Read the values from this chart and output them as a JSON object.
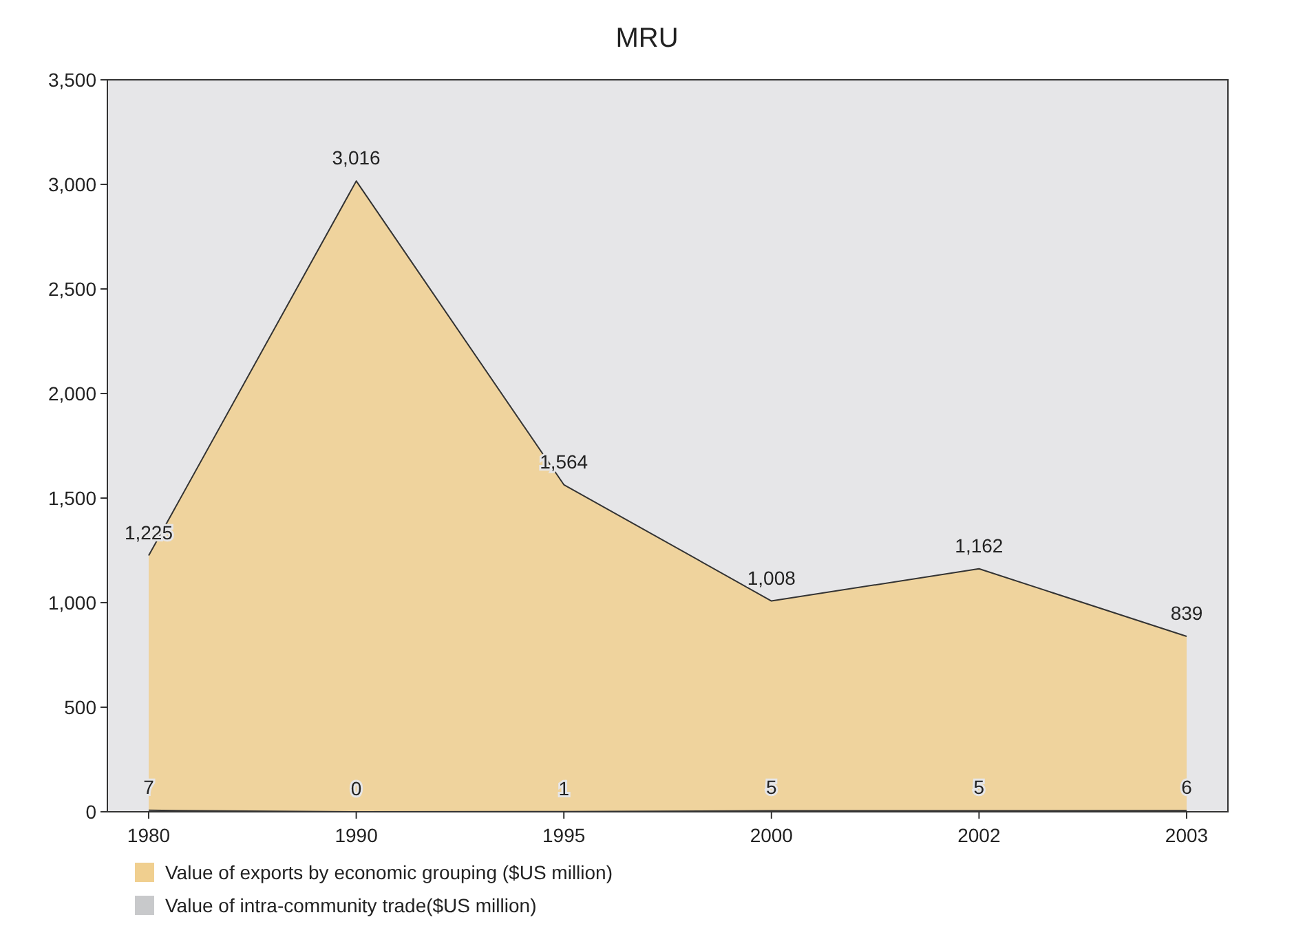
{
  "chart_data": {
    "type": "area",
    "title": "MRU",
    "categories": [
      "1980",
      "1990",
      "1995",
      "2000",
      "2002",
      "2003"
    ],
    "series": [
      {
        "name": "Value of exports by economic grouping ($US million)",
        "color": "#f0cf8f",
        "values": [
          1225,
          3016,
          1564,
          1008,
          1162,
          839
        ],
        "value_labels": [
          "1,225",
          "3,016",
          "1,564",
          "1,008",
          "1,162",
          "839"
        ]
      },
      {
        "name": "Value of intra-community trade($US million)",
        "color": "#c8c9cb",
        "values": [
          7,
          0,
          1,
          5,
          5,
          6
        ],
        "value_labels": [
          "7",
          "0",
          "1",
          "5",
          "5",
          "6"
        ]
      }
    ],
    "ylim": [
      0,
      3500
    ],
    "yticks": [
      {
        "value": 0,
        "label": "0"
      },
      {
        "value": 500,
        "label": "500"
      },
      {
        "value": 1000,
        "label": "1,000"
      },
      {
        "value": 1500,
        "label": "1,500"
      },
      {
        "value": 2000,
        "label": "2,000"
      },
      {
        "value": 2500,
        "label": "2,500"
      },
      {
        "value": 3000,
        "label": "3,000"
      },
      {
        "value": 3500,
        "label": "3,500"
      }
    ],
    "legend": "bottom",
    "grid": false
  }
}
